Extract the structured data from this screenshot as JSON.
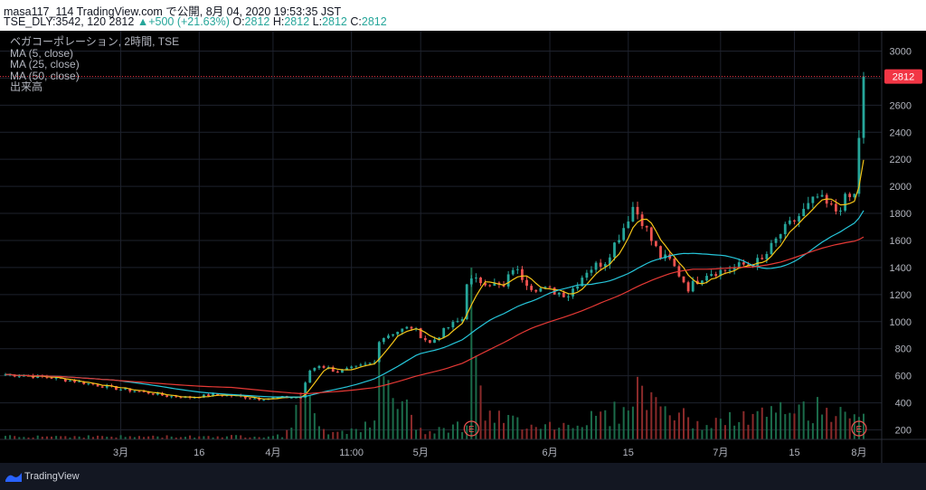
{
  "header": {
    "line1": "masa117_114 TradingView.com で公開, 8月 04, 2020 19:53:35 JST",
    "symbol": "TSE_DLY:3542, 120",
    "last": "2812",
    "change": "+500 (+21.63%)",
    "o_label": "O:",
    "o_value": "2812",
    "h_label": "H:",
    "h_value": "2812",
    "l_label": "L:",
    "l_value": "2812",
    "c_label": "C:",
    "c_value": "2812"
  },
  "legend": {
    "title": "ベガコーポレーション, 2時間, TSE",
    "ma5": "MA (5, close)",
    "ma25": "MA (25, close)",
    "ma50": "MA (50, close)",
    "volume": "出来高"
  },
  "footer": {
    "brand": "TradingView"
  },
  "colors": {
    "background": "#000000",
    "up": "#26a69a",
    "down": "#ef5350",
    "ma5": "#f5c518",
    "ma25": "#26c6da",
    "ma50": "#e53935",
    "price_line": "#f23645"
  },
  "chart_data": {
    "type": "candlestick",
    "y_axis": {
      "ticks": [
        200,
        400,
        600,
        800,
        1000,
        1200,
        1400,
        1600,
        1800,
        2000,
        2200,
        2400,
        2600,
        2800,
        3000
      ],
      "range": [
        130,
        3150
      ]
    },
    "x_axis": {
      "labels": [
        "3月",
        "16",
        "4月",
        "11:00",
        "5月",
        "6月",
        "15",
        "7月",
        "15",
        "8月"
      ]
    },
    "last_price": 2812,
    "event_markers": [
      "E",
      "E"
    ],
    "price_anchors": [
      [
        0,
        610
      ],
      [
        5,
        600
      ],
      [
        10,
        585
      ],
      [
        15,
        560
      ],
      [
        20,
        530
      ],
      [
        25,
        500
      ],
      [
        30,
        480
      ],
      [
        35,
        450
      ],
      [
        40,
        440
      ],
      [
        45,
        460
      ],
      [
        50,
        450
      ],
      [
        55,
        430
      ],
      [
        60,
        440
      ],
      [
        64,
        440
      ],
      [
        66,
        640
      ],
      [
        68,
        680
      ],
      [
        72,
        630
      ],
      [
        76,
        660
      ],
      [
        80,
        700
      ],
      [
        81,
        870
      ],
      [
        84,
        920
      ],
      [
        88,
        960
      ],
      [
        92,
        840
      ],
      [
        96,
        960
      ],
      [
        99,
        1020
      ],
      [
        100,
        1300
      ],
      [
        104,
        1300
      ],
      [
        108,
        1250
      ],
      [
        110,
        1400
      ],
      [
        114,
        1260
      ],
      [
        118,
        1230
      ],
      [
        122,
        1200
      ],
      [
        126,
        1380
      ],
      [
        130,
        1450
      ],
      [
        134,
        1700
      ],
      [
        136,
        1850
      ],
      [
        138,
        1750
      ],
      [
        140,
        1600
      ],
      [
        142,
        1480
      ],
      [
        144,
        1450
      ],
      [
        146,
        1350
      ],
      [
        148,
        1250
      ],
      [
        152,
        1360
      ],
      [
        156,
        1380
      ],
      [
        160,
        1420
      ],
      [
        164,
        1450
      ],
      [
        168,
        1650
      ],
      [
        172,
        1780
      ],
      [
        176,
        1920
      ],
      [
        178,
        1860
      ],
      [
        180,
        1820
      ],
      [
        182,
        1900
      ],
      [
        184,
        1930
      ],
      [
        186,
        2812
      ]
    ],
    "volume_anchors": [
      [
        0,
        15
      ],
      [
        30,
        12
      ],
      [
        60,
        15
      ],
      [
        65,
        180
      ],
      [
        70,
        30
      ],
      [
        80,
        60
      ],
      [
        81,
        280
      ],
      [
        90,
        40
      ],
      [
        100,
        60
      ],
      [
        101,
        680
      ],
      [
        104,
        90
      ],
      [
        120,
        60
      ],
      [
        134,
        120
      ],
      [
        136,
        220
      ],
      [
        150,
        60
      ],
      [
        170,
        120
      ],
      [
        186,
        140
      ]
    ]
  }
}
